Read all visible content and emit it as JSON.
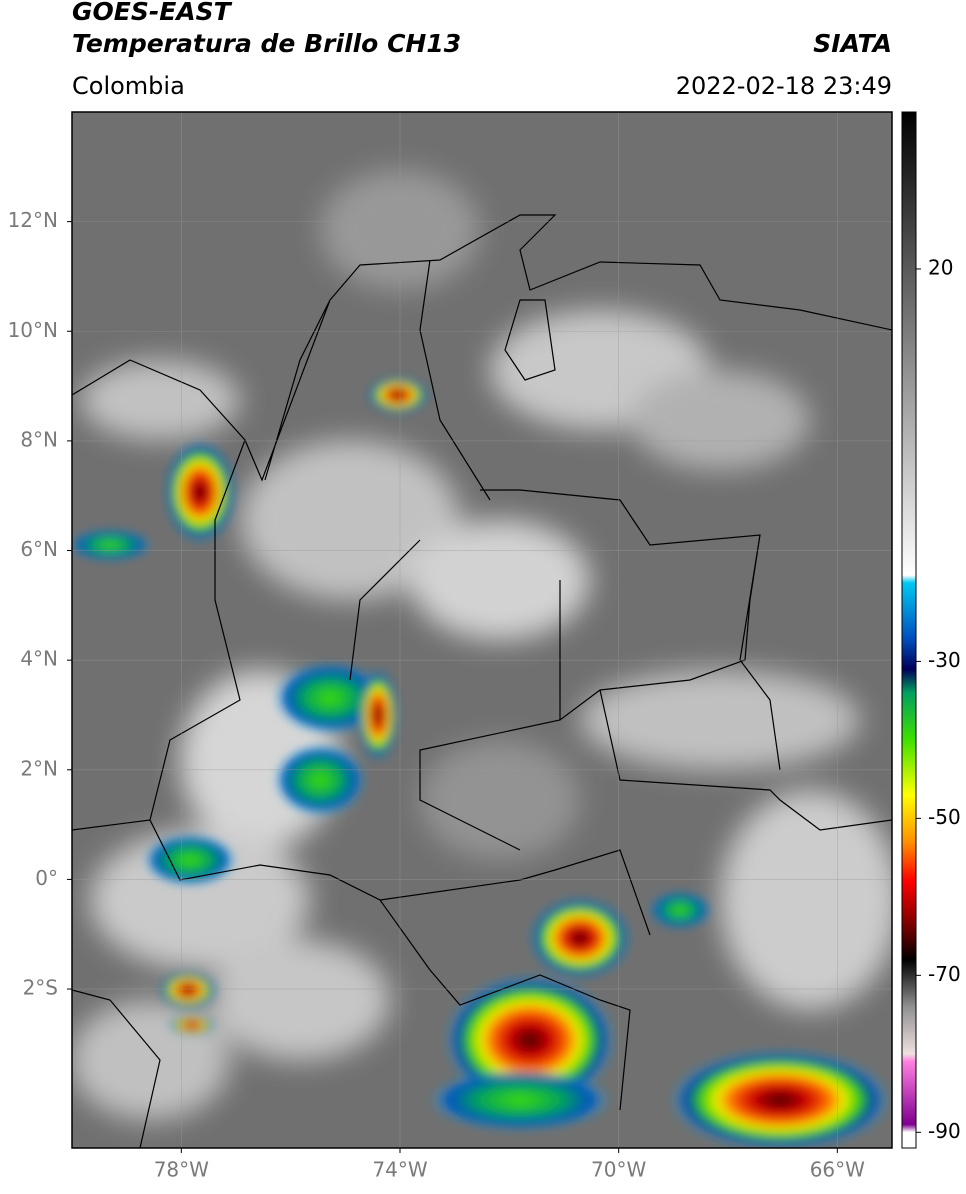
{
  "header": {
    "title": "GOES-EAST",
    "subtitle": "Temperatura de Brillo CH13",
    "source": "SIATA",
    "region": "Colombia",
    "timestamp": "2022-02-18 23:49"
  },
  "map": {
    "lon_range": [
      -80,
      -65
    ],
    "lat_range": [
      -4.9,
      14
    ],
    "lon_ticks": [
      {
        "value": -78,
        "label": "78°W"
      },
      {
        "value": -74,
        "label": "74°W"
      },
      {
        "value": -70,
        "label": "70°W"
      },
      {
        "value": -66,
        "label": "66°W"
      }
    ],
    "lat_ticks": [
      {
        "value": 12,
        "label": "12°N"
      },
      {
        "value": 10,
        "label": "10°N"
      },
      {
        "value": 8,
        "label": "8°N"
      },
      {
        "value": 6,
        "label": "6°N"
      },
      {
        "value": 4,
        "label": "4°N"
      },
      {
        "value": 2,
        "label": "2°N"
      },
      {
        "value": 0,
        "label": "0°"
      },
      {
        "value": -2,
        "label": "2°S"
      }
    ],
    "grid": true
  },
  "colorbar": {
    "range": [
      -92,
      40
    ],
    "ticks": [
      20,
      -30,
      -50,
      -70,
      -90
    ],
    "colormap": [
      {
        "value": 40,
        "color": "#000000"
      },
      {
        "value": 20,
        "color": "#5a5a5a"
      },
      {
        "value": -19,
        "color": "#ffffff"
      },
      {
        "value": -20,
        "color": "#00c8f0"
      },
      {
        "value": -27,
        "color": "#0050c0"
      },
      {
        "value": -31,
        "color": "#00005a"
      },
      {
        "value": -34,
        "color": "#00a060"
      },
      {
        "value": -40,
        "color": "#40e000"
      },
      {
        "value": -47,
        "color": "#ffff00"
      },
      {
        "value": -53,
        "color": "#ff9000"
      },
      {
        "value": -58,
        "color": "#ff0000"
      },
      {
        "value": -64,
        "color": "#700000"
      },
      {
        "value": -68,
        "color": "#000000"
      },
      {
        "value": -74,
        "color": "#909090"
      },
      {
        "value": -80,
        "color": "#f0e0e0"
      },
      {
        "value": -81,
        "color": "#ff80e0"
      },
      {
        "value": -89,
        "color": "#800090"
      },
      {
        "value": -90,
        "color": "#ffffff"
      },
      {
        "value": -92,
        "color": "#ffffff"
      }
    ]
  }
}
